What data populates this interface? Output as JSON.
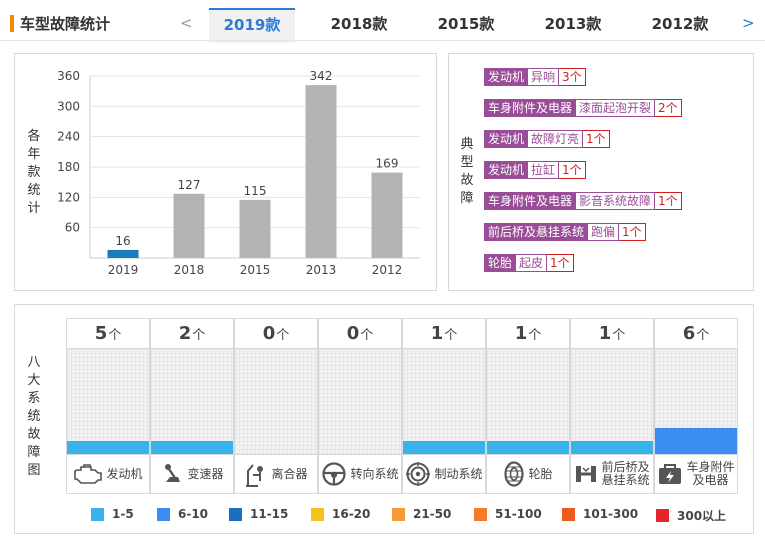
{
  "header": {
    "title": "车型故障统计",
    "prev_arrow": "<",
    "next_arrow": ">",
    "tabs": [
      {
        "label": "2019款",
        "active": true
      },
      {
        "label": "2018款",
        "active": false
      },
      {
        "label": "2015款",
        "active": false
      },
      {
        "label": "2013款",
        "active": false
      },
      {
        "label": "2012款",
        "active": false
      }
    ]
  },
  "chart_panel": {
    "side_label": "各年款统计"
  },
  "chart_data": {
    "type": "bar",
    "categories": [
      "2019",
      "2018",
      "2015",
      "2013",
      "2012"
    ],
    "values": [
      16,
      127,
      115,
      342,
      169
    ],
    "yticks": [
      60,
      120,
      180,
      240,
      300,
      360
    ],
    "ylim": [
      0,
      360
    ],
    "grid": true,
    "bar_colors": [
      "#1a7bbf",
      "#b3b3b3",
      "#b3b3b3",
      "#b3b3b3",
      "#b3b3b3"
    ]
  },
  "typical": {
    "side_label": "典型故障",
    "items": [
      {
        "category": "发动机",
        "desc": "异响",
        "count": "3个"
      },
      {
        "category": "车身附件及电器",
        "desc": "漆面起泡开裂",
        "count": "2个"
      },
      {
        "category": "发动机",
        "desc": "故障灯亮",
        "count": "1个"
      },
      {
        "category": "发动机",
        "desc": "拉缸",
        "count": "1个"
      },
      {
        "category": "车身附件及电器",
        "desc": "影音系统故障",
        "count": "1个"
      },
      {
        "category": "前后桥及悬挂系统",
        "desc": "跑偏",
        "count": "1个"
      },
      {
        "category": "轮胎",
        "desc": "起皮",
        "count": "1个"
      }
    ]
  },
  "eight": {
    "side_label": "八大系统故障图",
    "unit": "个",
    "systems": [
      {
        "label": "发动机",
        "count": "5",
        "level": "1-5",
        "icon": "engine-icon"
      },
      {
        "label": "变速器",
        "count": "2",
        "level": "1-5",
        "icon": "gearshift-icon"
      },
      {
        "label": "离合器",
        "count": "0",
        "level": "0",
        "icon": "clutch-icon"
      },
      {
        "label": "转向系统",
        "count": "0",
        "level": "0",
        "icon": "steering-wheel-icon"
      },
      {
        "label": "制动系统",
        "count": "1",
        "level": "1-5",
        "icon": "brake-disc-icon"
      },
      {
        "label": "轮胎",
        "count": "1",
        "level": "1-5",
        "icon": "tire-icon"
      },
      {
        "label": "前后桥及悬挂系统",
        "count": "1",
        "level": "1-5",
        "icon": "suspension-icon"
      },
      {
        "label": "车身附件及电器",
        "count": "6",
        "level": "6-10",
        "icon": "car-body-icon"
      }
    ]
  },
  "legend": [
    {
      "label": "1-5",
      "color": "#38b2ec"
    },
    {
      "label": "6-10",
      "color": "#3b8ef0"
    },
    {
      "label": "11-15",
      "color": "#1a6fbf"
    },
    {
      "label": "16-20",
      "color": "#f6c21c"
    },
    {
      "label": "21-50",
      "color": "#f59a36"
    },
    {
      "label": "51-100",
      "color": "#f47a2c"
    },
    {
      "label": "101-300",
      "color": "#ef5a1e"
    },
    {
      "label": "300以上",
      "color": "#e4262b"
    }
  ]
}
